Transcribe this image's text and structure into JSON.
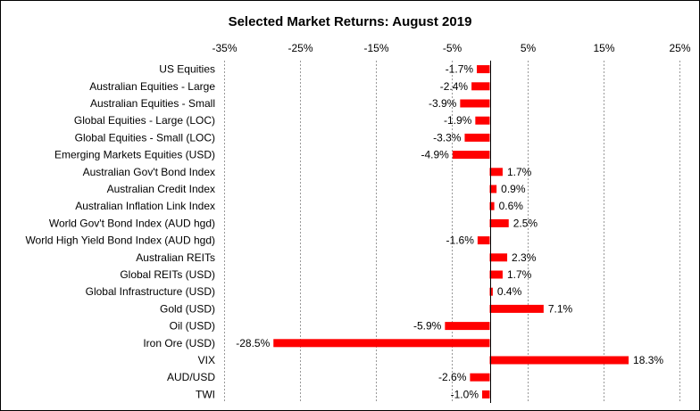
{
  "chart_data": {
    "type": "bar",
    "orientation": "horizontal",
    "title": "Selected Market Returns: August 2019",
    "xlabel": "",
    "ylabel": "",
    "xlim": [
      -35,
      25
    ],
    "xticks": [
      -35,
      -25,
      -15,
      -5,
      5,
      15,
      25
    ],
    "tick_labels": [
      "-35%",
      "-25%",
      "-15%",
      "-5%",
      "5%",
      "15%",
      "25%"
    ],
    "grid": true,
    "bar_color": "#ff0000",
    "categories": [
      "US Equities",
      "Australian Equities - Large",
      "Australian Equities - Small",
      "Global Equities - Large (LOC)",
      "Global Equities - Small (LOC)",
      "Emerging Markets Equities (USD)",
      "Australian Gov't Bond Index",
      "Australian Credit Index",
      "Australian Inflation Link Index",
      "World Gov't Bond Index (AUD hgd)",
      "World High Yield Bond Index (AUD hgd)",
      "Australian REITs",
      "Global REITs (USD)",
      "Global Infrastructure (USD)",
      "Gold (USD)",
      "Oil (USD)",
      "Iron Ore (USD)",
      "VIX",
      "AUD/USD",
      "TWI"
    ],
    "values": [
      -1.7,
      -2.4,
      -3.9,
      -1.9,
      -3.3,
      -4.9,
      1.7,
      0.9,
      0.6,
      2.5,
      -1.6,
      2.3,
      1.7,
      0.4,
      7.1,
      -5.9,
      -28.5,
      18.3,
      -2.6,
      -1.0
    ],
    "value_labels": [
      "-1.7%",
      "-2.4%",
      "-3.9%",
      "-1.9%",
      "-3.3%",
      "-4.9%",
      "1.7%",
      "0.9%",
      "0.6%",
      "2.5%",
      "-1.6%",
      "2.3%",
      "1.7%",
      "0.4%",
      "7.1%",
      "-5.9%",
      "-28.5%",
      "18.3%",
      "-2.6%",
      "-1.0%"
    ]
  }
}
